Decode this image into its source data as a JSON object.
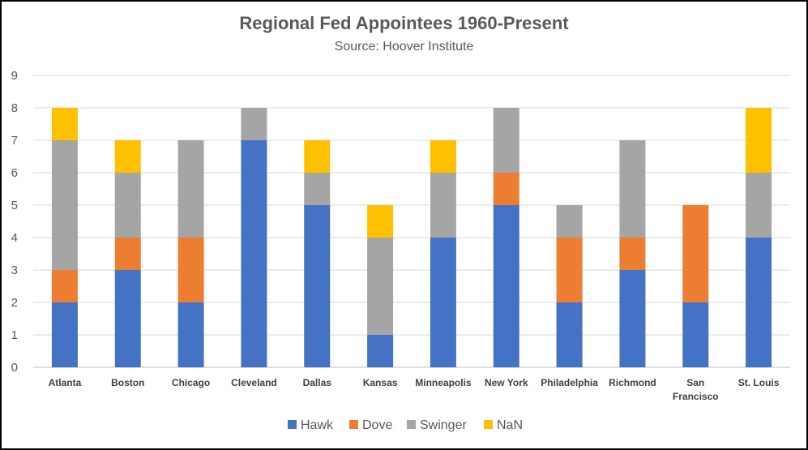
{
  "chart_data": {
    "type": "bar",
    "stacked": true,
    "title": "Regional Fed Appointees 1960-Present",
    "subtitle": "Source: Hoover Institute",
    "categories": [
      "Atlanta",
      "Boston",
      "Chicago",
      "Cleveland",
      "Dallas",
      "Kansas",
      "Minneapolis",
      "New York",
      "Philadelphia",
      "Richmond",
      "San Francisco",
      "St. Louis"
    ],
    "series": [
      {
        "name": "Hawk",
        "color": "#4472C4",
        "values": [
          2,
          3,
          2,
          7,
          5,
          1,
          4,
          5,
          2,
          3,
          2,
          4
        ]
      },
      {
        "name": "Dove",
        "color": "#ED7D31",
        "values": [
          1,
          1,
          2,
          0,
          0,
          0,
          0,
          1,
          2,
          1,
          3,
          0
        ]
      },
      {
        "name": "Swinger",
        "color": "#A5A5A5",
        "values": [
          4,
          2,
          3,
          1,
          1,
          3,
          2,
          2,
          1,
          3,
          0,
          2
        ]
      },
      {
        "name": "NaN",
        "color": "#FFC000",
        "values": [
          1,
          1,
          0,
          0,
          1,
          1,
          1,
          0,
          0,
          0,
          0,
          2
        ]
      }
    ],
    "ylim": [
      0,
      9
    ],
    "yticks": [
      0,
      1,
      2,
      3,
      4,
      5,
      6,
      7,
      8,
      9
    ],
    "grid": true,
    "legend_position": "bottom"
  }
}
